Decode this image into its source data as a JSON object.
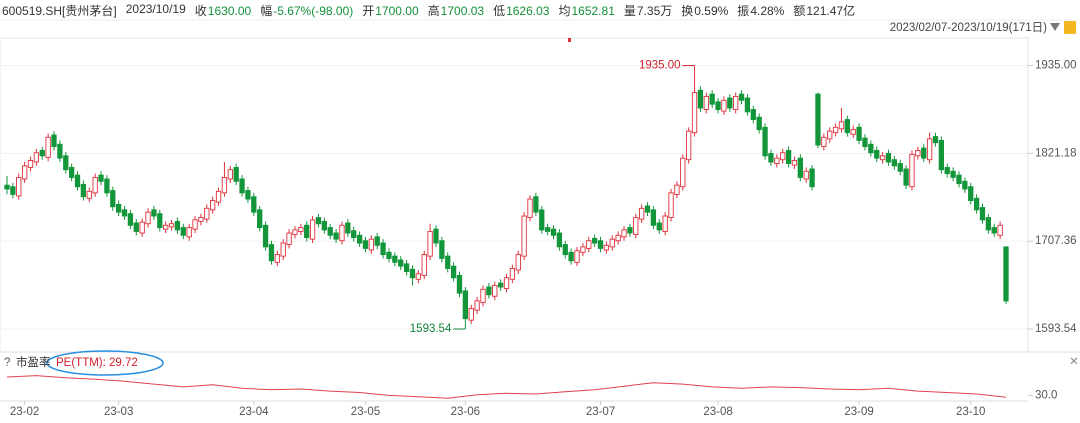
{
  "header": {
    "code": "600519.SH[贵州茅台]",
    "date": "2023/10/19",
    "items": [
      {
        "label": "收",
        "value": "1630.00",
        "color": "#14913a"
      },
      {
        "label": "幅",
        "value": "-5.67%(-98.00)",
        "color": "#14913a"
      },
      {
        "label": "开",
        "value": "1700.00",
        "color": "#14913a"
      },
      {
        "label": "高",
        "value": "1700.03",
        "color": "#14913a"
      },
      {
        "label": "低",
        "value": "1626.03",
        "color": "#14913a"
      },
      {
        "label": "均",
        "value": "1652.81",
        "color": "#14913a"
      },
      {
        "label": "量",
        "value": "7.35万",
        "color": "#333333"
      },
      {
        "label": "换",
        "value": "0.59%",
        "color": "#333333"
      },
      {
        "label": "振",
        "value": "4.28%",
        "color": "#333333"
      },
      {
        "label": "额",
        "value": "121.47亿",
        "color": "#333333"
      }
    ],
    "range": "2023/02/07-2023/10/19(171日)"
  },
  "chart_data": {
    "type": "candlestick",
    "up_color": "#e0303a",
    "down_color": "#13963a",
    "ylim": [
      1578,
      1950
    ],
    "yticks": [
      {
        "value": 1935,
        "label": "1935.00"
      },
      {
        "value": 1821.18,
        "label": "1821.18"
      },
      {
        "value": 1707.36,
        "label": "1707.36"
      },
      {
        "value": 1593.54,
        "label": "1593.54"
      }
    ],
    "xticks": [
      {
        "value": 3,
        "label": "23-02"
      },
      {
        "value": 19,
        "label": "23-03"
      },
      {
        "value": 42,
        "label": "23-04"
      },
      {
        "value": 61,
        "label": "23-05"
      },
      {
        "value": 78,
        "label": "23-06"
      },
      {
        "value": 101,
        "label": "23-07"
      },
      {
        "value": 121,
        "label": "23-08"
      },
      {
        "value": 145,
        "label": "23-09"
      },
      {
        "value": 164,
        "label": "23-10"
      }
    ],
    "annotations": [
      {
        "label": "1935.00",
        "value": 1935,
        "color": "#d0202a"
      },
      {
        "label": "1593.54",
        "value": 1593.54,
        "color": "#13863a"
      }
    ],
    "candles": [
      [
        1780,
        1792,
        1768,
        1775
      ],
      [
        1778,
        1783,
        1763,
        1768
      ],
      [
        1766,
        1795,
        1761,
        1790
      ],
      [
        1788,
        1810,
        1783,
        1805
      ],
      [
        1803,
        1817,
        1798,
        1812
      ],
      [
        1810,
        1827,
        1805,
        1822
      ],
      [
        1825,
        1830,
        1813,
        1818
      ],
      [
        1816,
        1847,
        1811,
        1842
      ],
      [
        1845,
        1850,
        1825,
        1830
      ],
      [
        1833,
        1838,
        1810,
        1815
      ],
      [
        1818,
        1823,
        1795,
        1800
      ],
      [
        1803,
        1808,
        1785,
        1790
      ],
      [
        1793,
        1798,
        1773,
        1778
      ],
      [
        1781,
        1786,
        1760,
        1765
      ],
      [
        1763,
        1777,
        1758,
        1772
      ],
      [
        1770,
        1795,
        1765,
        1790
      ],
      [
        1793,
        1798,
        1780,
        1785
      ],
      [
        1788,
        1793,
        1765,
        1770
      ],
      [
        1773,
        1778,
        1747,
        1752
      ],
      [
        1755,
        1760,
        1740,
        1745
      ],
      [
        1748,
        1753,
        1735,
        1740
      ],
      [
        1743,
        1748,
        1723,
        1728
      ],
      [
        1731,
        1736,
        1715,
        1720
      ],
      [
        1718,
        1737,
        1713,
        1732
      ],
      [
        1730,
        1750,
        1725,
        1745
      ],
      [
        1748,
        1753,
        1735,
        1740
      ],
      [
        1743,
        1748,
        1720,
        1725
      ],
      [
        1723,
        1733,
        1718,
        1728
      ],
      [
        1726,
        1735,
        1721,
        1730
      ],
      [
        1733,
        1738,
        1717,
        1722
      ],
      [
        1725,
        1730,
        1710,
        1715
      ],
      [
        1713,
        1730,
        1708,
        1725
      ],
      [
        1723,
        1740,
        1718,
        1735
      ],
      [
        1733,
        1743,
        1728,
        1738
      ],
      [
        1736,
        1755,
        1731,
        1750
      ],
      [
        1748,
        1765,
        1743,
        1760
      ],
      [
        1758,
        1777,
        1753,
        1772
      ],
      [
        1770,
        1810,
        1765,
        1790
      ],
      [
        1788,
        1805,
        1783,
        1800
      ],
      [
        1803,
        1808,
        1780,
        1785
      ],
      [
        1788,
        1793,
        1765,
        1770
      ],
      [
        1773,
        1778,
        1757,
        1762
      ],
      [
        1765,
        1770,
        1740,
        1745
      ],
      [
        1748,
        1753,
        1720,
        1725
      ],
      [
        1728,
        1733,
        1695,
        1700
      ],
      [
        1703,
        1708,
        1677,
        1682
      ],
      [
        1680,
        1695,
        1675,
        1690
      ],
      [
        1688,
        1710,
        1683,
        1705
      ],
      [
        1703,
        1723,
        1698,
        1718
      ],
      [
        1716,
        1727,
        1711,
        1722
      ],
      [
        1720,
        1730,
        1715,
        1725
      ],
      [
        1728,
        1733,
        1707,
        1712
      ],
      [
        1710,
        1740,
        1705,
        1735
      ],
      [
        1738,
        1743,
        1725,
        1730
      ],
      [
        1733,
        1738,
        1717,
        1722
      ],
      [
        1725,
        1730,
        1710,
        1715
      ],
      [
        1718,
        1723,
        1705,
        1710
      ],
      [
        1708,
        1733,
        1703,
        1728
      ],
      [
        1731,
        1736,
        1713,
        1718
      ],
      [
        1721,
        1726,
        1707,
        1712
      ],
      [
        1715,
        1720,
        1700,
        1705
      ],
      [
        1708,
        1713,
        1693,
        1698
      ],
      [
        1696,
        1715,
        1691,
        1710
      ],
      [
        1713,
        1718,
        1697,
        1702
      ],
      [
        1705,
        1710,
        1685,
        1690
      ],
      [
        1693,
        1698,
        1680,
        1685
      ],
      [
        1688,
        1693,
        1675,
        1680
      ],
      [
        1683,
        1688,
        1670,
        1675
      ],
      [
        1678,
        1683,
        1663,
        1668
      ],
      [
        1671,
        1676,
        1650,
        1660
      ],
      [
        1658,
        1670,
        1653,
        1665
      ],
      [
        1663,
        1695,
        1658,
        1690
      ],
      [
        1688,
        1730,
        1683,
        1720
      ],
      [
        1723,
        1728,
        1700,
        1705
      ],
      [
        1708,
        1713,
        1680,
        1685
      ],
      [
        1688,
        1693,
        1667,
        1672
      ],
      [
        1675,
        1680,
        1655,
        1660
      ],
      [
        1663,
        1668,
        1635,
        1640
      ],
      [
        1643,
        1648,
        1593.54,
        1607
      ],
      [
        1605,
        1625,
        1600,
        1620
      ],
      [
        1618,
        1635,
        1613,
        1630
      ],
      [
        1628,
        1650,
        1623,
        1645
      ],
      [
        1648,
        1653,
        1633,
        1638
      ],
      [
        1636,
        1655,
        1631,
        1650
      ],
      [
        1653,
        1658,
        1643,
        1648
      ],
      [
        1646,
        1665,
        1641,
        1660
      ],
      [
        1658,
        1677,
        1653,
        1672
      ],
      [
        1670,
        1695,
        1665,
        1690
      ],
      [
        1688,
        1745,
        1683,
        1740
      ],
      [
        1738,
        1767,
        1733,
        1762
      ],
      [
        1765,
        1770,
        1740,
        1745
      ],
      [
        1748,
        1753,
        1717,
        1722
      ],
      [
        1725,
        1730,
        1715,
        1720
      ],
      [
        1723,
        1728,
        1710,
        1715
      ],
      [
        1718,
        1723,
        1695,
        1700
      ],
      [
        1703,
        1708,
        1685,
        1690
      ],
      [
        1693,
        1698,
        1677,
        1682
      ],
      [
        1680,
        1700,
        1675,
        1695
      ],
      [
        1693,
        1705,
        1688,
        1700
      ],
      [
        1698,
        1713,
        1693,
        1708
      ],
      [
        1711,
        1716,
        1700,
        1705
      ],
      [
        1708,
        1713,
        1693,
        1698
      ],
      [
        1696,
        1707,
        1691,
        1702
      ],
      [
        1700,
        1715,
        1695,
        1710
      ],
      [
        1708,
        1720,
        1703,
        1715
      ],
      [
        1713,
        1727,
        1708,
        1722
      ],
      [
        1725,
        1730,
        1713,
        1718
      ],
      [
        1716,
        1743,
        1711,
        1738
      ],
      [
        1736,
        1755,
        1731,
        1750
      ],
      [
        1753,
        1758,
        1740,
        1745
      ],
      [
        1748,
        1753,
        1723,
        1728
      ],
      [
        1731,
        1736,
        1717,
        1722
      ],
      [
        1720,
        1745,
        1715,
        1740
      ],
      [
        1738,
        1775,
        1733,
        1770
      ],
      [
        1768,
        1785,
        1763,
        1780
      ],
      [
        1778,
        1820,
        1773,
        1815
      ],
      [
        1813,
        1855,
        1808,
        1850
      ],
      [
        1848,
        1935,
        1843,
        1900
      ],
      [
        1903,
        1908,
        1875,
        1880
      ],
      [
        1878,
        1900,
        1873,
        1895
      ],
      [
        1898,
        1903,
        1880,
        1885
      ],
      [
        1888,
        1893,
        1873,
        1878
      ],
      [
        1876,
        1895,
        1871,
        1890
      ],
      [
        1893,
        1898,
        1875,
        1880
      ],
      [
        1878,
        1900,
        1873,
        1895
      ],
      [
        1898,
        1903,
        1885,
        1890
      ],
      [
        1893,
        1898,
        1870,
        1875
      ],
      [
        1878,
        1883,
        1860,
        1865
      ],
      [
        1868,
        1873,
        1847,
        1852
      ],
      [
        1855,
        1860,
        1813,
        1818
      ],
      [
        1821,
        1826,
        1805,
        1810
      ],
      [
        1808,
        1820,
        1803,
        1815
      ],
      [
        1813,
        1827,
        1808,
        1822
      ],
      [
        1825,
        1830,
        1803,
        1808
      ],
      [
        1806,
        1817,
        1801,
        1812
      ],
      [
        1815,
        1820,
        1785,
        1790
      ],
      [
        1788,
        1803,
        1783,
        1798
      ],
      [
        1801,
        1806,
        1773,
        1778
      ],
      [
        1898,
        1900,
        1828,
        1832
      ],
      [
        1830,
        1847,
        1825,
        1842
      ],
      [
        1840,
        1855,
        1835,
        1850
      ],
      [
        1848,
        1860,
        1843,
        1855
      ],
      [
        1853,
        1880,
        1848,
        1862
      ],
      [
        1865,
        1870,
        1843,
        1848
      ],
      [
        1846,
        1857,
        1841,
        1852
      ],
      [
        1855,
        1860,
        1833,
        1838
      ],
      [
        1841,
        1846,
        1825,
        1830
      ],
      [
        1833,
        1838,
        1817,
        1822
      ],
      [
        1825,
        1830,
        1810,
        1815
      ],
      [
        1813,
        1823,
        1808,
        1818
      ],
      [
        1821,
        1826,
        1805,
        1810
      ],
      [
        1813,
        1818,
        1800,
        1805
      ],
      [
        1808,
        1813,
        1793,
        1798
      ],
      [
        1801,
        1806,
        1775,
        1780
      ],
      [
        1778,
        1825,
        1773,
        1820
      ],
      [
        1818,
        1830,
        1813,
        1825
      ],
      [
        1828,
        1833,
        1810,
        1815
      ],
      [
        1813,
        1848,
        1808,
        1840
      ],
      [
        1843,
        1848,
        1830,
        1835
      ],
      [
        1838,
        1843,
        1795,
        1800
      ],
      [
        1803,
        1808,
        1790,
        1795
      ],
      [
        1798,
        1803,
        1785,
        1790
      ],
      [
        1793,
        1798,
        1777,
        1782
      ],
      [
        1785,
        1790,
        1770,
        1775
      ],
      [
        1778,
        1783,
        1755,
        1760
      ],
      [
        1763,
        1768,
        1743,
        1748
      ],
      [
        1751,
        1756,
        1730,
        1735
      ],
      [
        1738,
        1743,
        1717,
        1722
      ],
      [
        1725,
        1730,
        1713,
        1718
      ],
      [
        1715,
        1733,
        1710,
        1728
      ],
      [
        1700,
        1700.03,
        1626.03,
        1630
      ]
    ],
    "pe": {
      "title": "市盈率",
      "legend": "PE(TTM): 29.72",
      "color": "#e0404a",
      "ylim": [
        29.2,
        33.6
      ],
      "yticks": [
        {
          "value": 30,
          "label": "30.0"
        }
      ],
      "values": [
        32.6,
        32.8,
        32.5,
        32.3,
        32.0,
        31.6,
        31.2,
        31.5,
        31.0,
        30.8,
        30.9,
        30.6,
        30.4,
        30.0,
        29.8,
        29.6,
        30.1,
        30.3,
        30.2,
        30.5,
        30.8,
        31.3,
        31.8,
        31.6,
        31.2,
        31.0,
        31.2,
        31.1,
        30.9,
        30.8,
        31.0,
        30.6,
        30.4,
        30.2,
        29.72
      ]
    }
  }
}
